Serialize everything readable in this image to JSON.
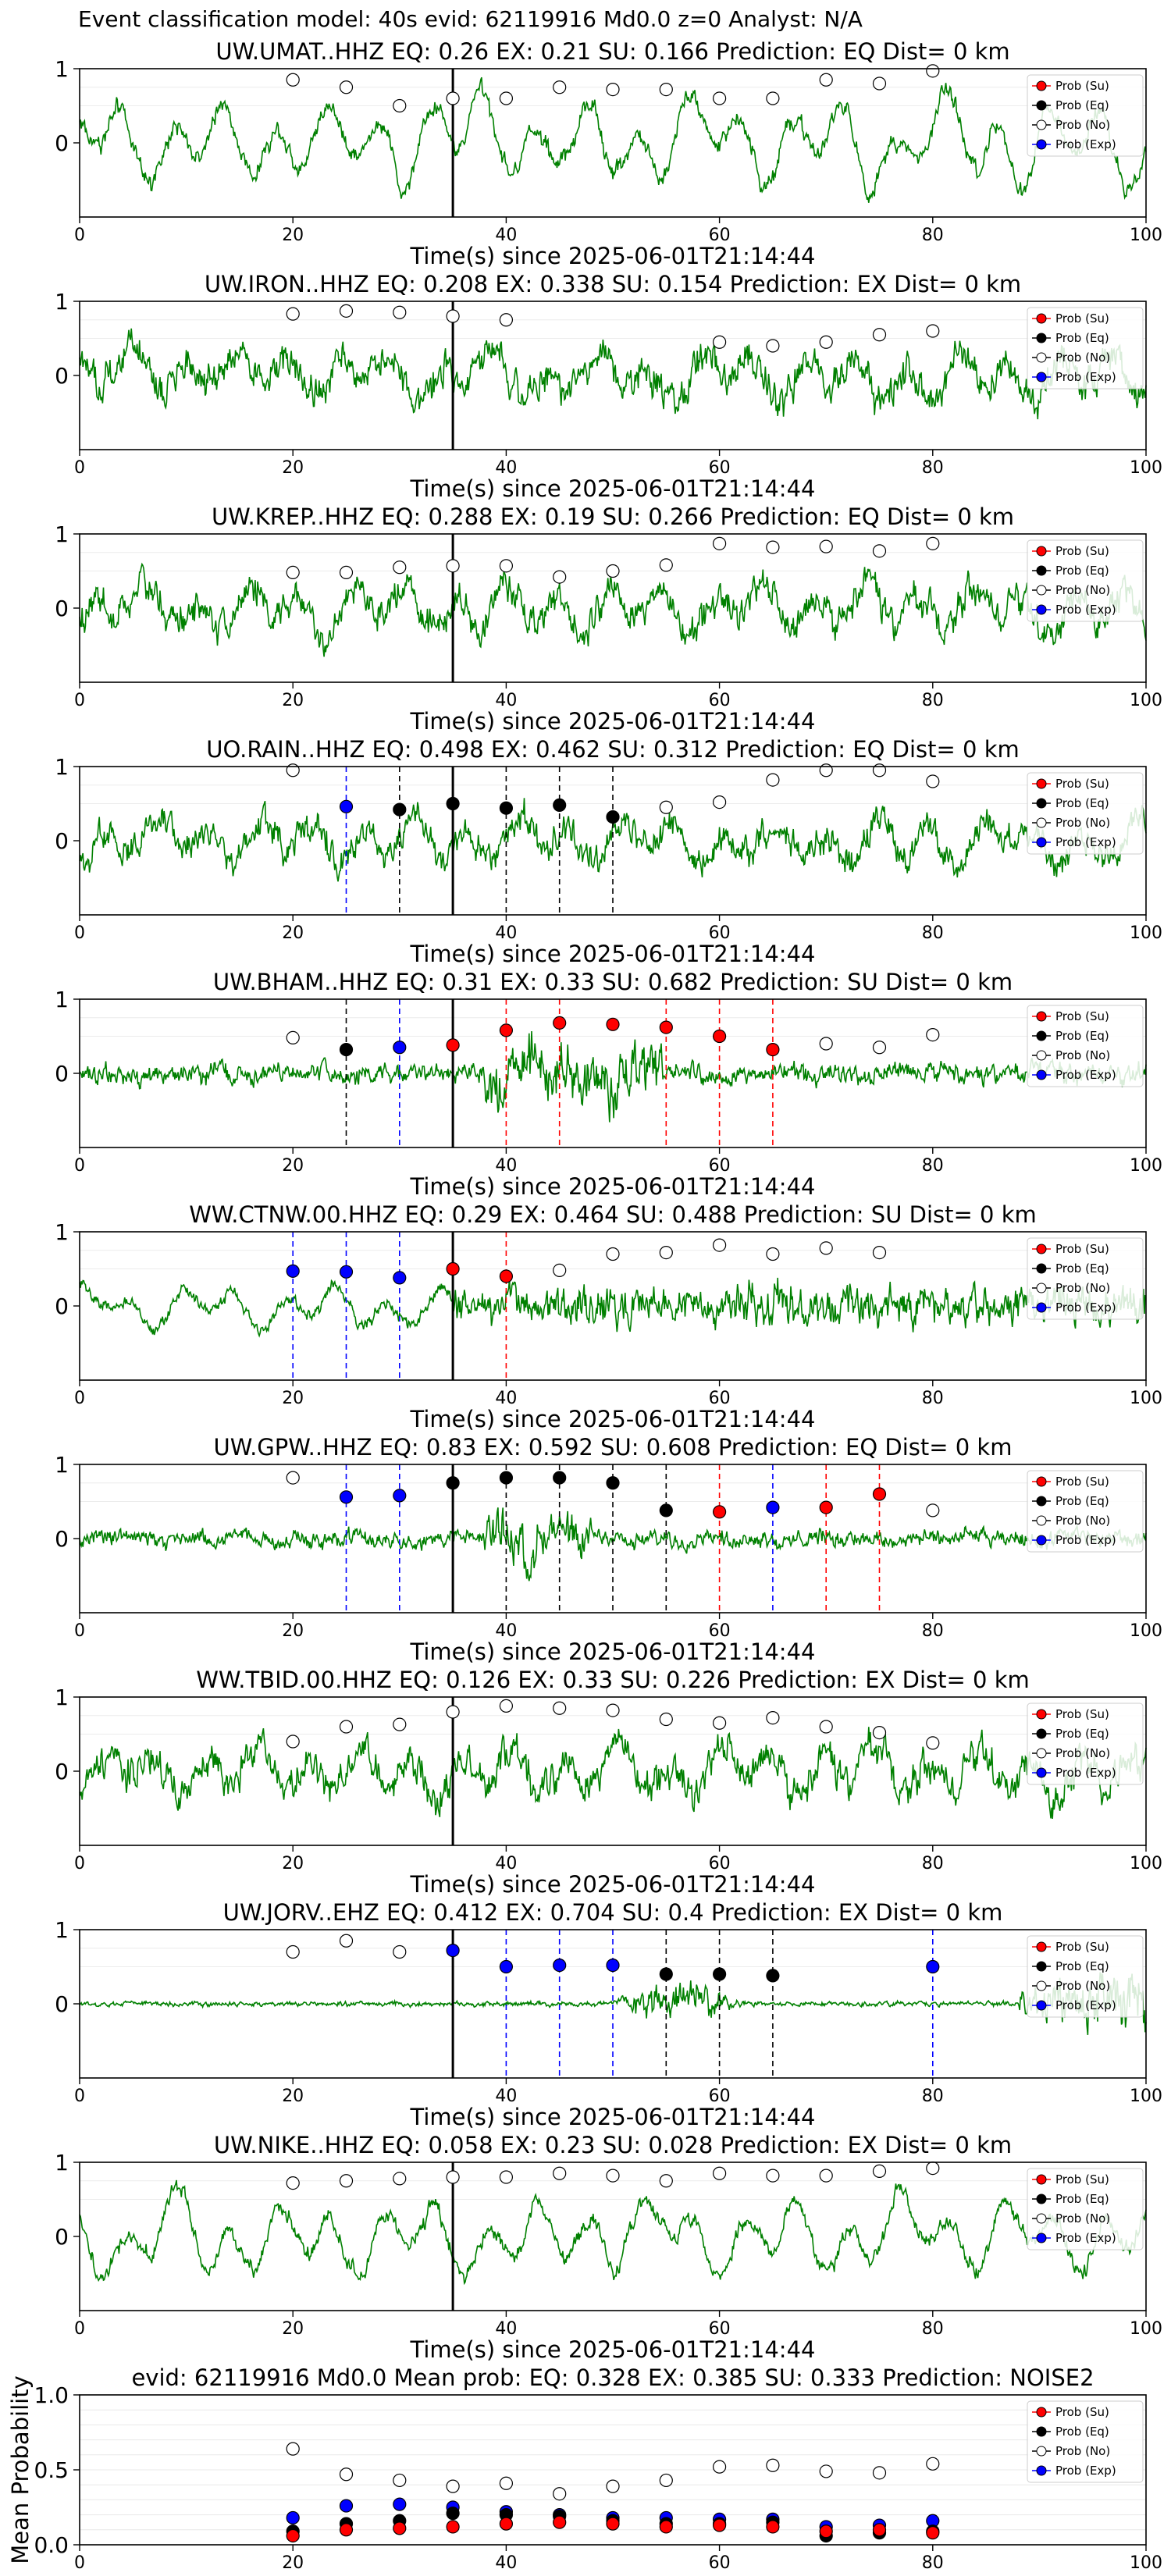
{
  "suptitle": "Event classification model: 40s evid: 62119916 Md0.0 z=0 Analyst: N/A",
  "colors": {
    "waveform": "#008000",
    "su": "#ff0000",
    "eq": "#000000",
    "no": "#ffffff",
    "exp": "#0000ff",
    "pick_line": "#000000"
  },
  "legend": {
    "su": "Prob (Su)",
    "eq": "Prob (Eq)",
    "no": "Prob (No)",
    "exp": "Prob (Exp)"
  },
  "xlabel": "Time(s) since 2025-06-01T21:14:44",
  "chart_data": [
    {
      "type": "line",
      "title": "UW.UMAT..HHZ   EQ: 0.26   EX: 0.21   SU: 0.166   Prediction: EQ    Dist= 0 km",
      "seed": 1,
      "style": "lowfreq",
      "amp": 0.9,
      "ylim": [
        -1,
        1
      ],
      "yticks": [
        "1",
        "0"
      ],
      "xlim": [
        0,
        100
      ],
      "xticks": [
        "0",
        "20",
        "40",
        "60",
        "80",
        "100"
      ],
      "pick_time": 35,
      "series": [
        {
          "class": "no",
          "x": [
            20,
            25,
            30,
            35,
            40,
            45,
            50,
            55,
            60,
            65,
            70,
            75,
            80
          ],
          "y": [
            0.85,
            0.75,
            0.5,
            0.6,
            0.6,
            0.75,
            0.72,
            0.72,
            0.6,
            0.6,
            0.85,
            0.8,
            0.97
          ]
        }
      ],
      "vlines": []
    },
    {
      "type": "line",
      "title": "UW.IRON..HHZ   EQ: 0.208   EX: 0.338   SU: 0.154   Prediction: EX    Dist= 0 km",
      "seed": 2,
      "style": "mixed",
      "amp": 0.85,
      "ylim": [
        -1,
        1
      ],
      "yticks": [
        "1",
        "0"
      ],
      "xlim": [
        0,
        100
      ],
      "xticks": [
        "0",
        "20",
        "40",
        "60",
        "80",
        "100"
      ],
      "pick_time": 35,
      "series": [
        {
          "class": "no",
          "x": [
            20,
            25,
            30,
            35,
            40,
            60,
            65,
            70,
            75,
            80
          ],
          "y": [
            0.83,
            0.87,
            0.85,
            0.8,
            0.75,
            0.45,
            0.4,
            0.45,
            0.55,
            0.6
          ]
        }
      ],
      "vlines": []
    },
    {
      "type": "line",
      "title": "UW.KREP..HHZ   EQ: 0.288   EX: 0.19   SU: 0.266   Prediction: EQ    Dist= 0 km",
      "seed": 3,
      "style": "mixed",
      "amp": 0.8,
      "ylim": [
        -1,
        1
      ],
      "yticks": [
        "1",
        "0"
      ],
      "xlim": [
        0,
        100
      ],
      "xticks": [
        "0",
        "20",
        "40",
        "60",
        "80",
        "100"
      ],
      "pick_time": 35,
      "series": [
        {
          "class": "no",
          "x": [
            20,
            25,
            30,
            35,
            40,
            45,
            50,
            55,
            60,
            65,
            70,
            75,
            80
          ],
          "y": [
            0.48,
            0.48,
            0.55,
            0.57,
            0.57,
            0.42,
            0.5,
            0.58,
            0.87,
            0.82,
            0.83,
            0.77,
            0.87
          ]
        }
      ],
      "vlines": []
    },
    {
      "type": "line",
      "title": "UO.RAIN..HHZ   EQ: 0.498   EX: 0.462   SU: 0.312   Prediction: EQ    Dist= 0 km",
      "seed": 4,
      "style": "mixed",
      "amp": 0.75,
      "ylim": [
        -1,
        1
      ],
      "yticks": [
        "1",
        "0"
      ],
      "xlim": [
        0,
        100
      ],
      "xticks": [
        "0",
        "20",
        "40",
        "60",
        "80",
        "100"
      ],
      "pick_time": 35,
      "series": [
        {
          "class": "no",
          "x": [
            20,
            55,
            60,
            65,
            70,
            75,
            80
          ],
          "y": [
            0.95,
            0.45,
            0.52,
            0.82,
            0.95,
            0.95,
            0.8
          ]
        },
        {
          "class": "exp",
          "x": [
            25
          ],
          "y": [
            0.46
          ]
        },
        {
          "class": "eq",
          "x": [
            30,
            35,
            40,
            45,
            50
          ],
          "y": [
            0.42,
            0.5,
            0.44,
            0.48,
            0.32
          ]
        }
      ],
      "vlines": [
        {
          "x": 25,
          "class": "exp"
        },
        {
          "x": 30,
          "class": "eq"
        },
        {
          "x": 40,
          "class": "eq"
        },
        {
          "x": 45,
          "class": "eq"
        },
        {
          "x": 50,
          "class": "eq"
        }
      ]
    },
    {
      "type": "line",
      "title": "UW.BHAM..HHZ   EQ: 0.31   EX: 0.33   SU: 0.682   Prediction: SU    Dist= 0 km",
      "seed": 5,
      "style": "burst",
      "burst": [
        38,
        55
      ],
      "amp": 0.9,
      "ylim": [
        -1,
        1
      ],
      "yticks": [
        "1",
        "0"
      ],
      "xlim": [
        0,
        100
      ],
      "xticks": [
        "0",
        "20",
        "40",
        "60",
        "80",
        "100"
      ],
      "pick_time": 35,
      "series": [
        {
          "class": "no",
          "x": [
            20,
            70,
            75,
            80
          ],
          "y": [
            0.48,
            0.4,
            0.35,
            0.52
          ]
        },
        {
          "class": "eq",
          "x": [
            25
          ],
          "y": [
            0.32
          ]
        },
        {
          "class": "exp",
          "x": [
            30
          ],
          "y": [
            0.35
          ]
        },
        {
          "class": "su",
          "x": [
            35,
            40,
            45,
            50,
            55,
            60,
            65
          ],
          "y": [
            0.38,
            0.58,
            0.68,
            0.66,
            0.62,
            0.5,
            0.32
          ]
        }
      ],
      "vlines": [
        {
          "x": 25,
          "class": "eq"
        },
        {
          "x": 30,
          "class": "exp"
        },
        {
          "x": 40,
          "class": "su"
        },
        {
          "x": 45,
          "class": "su"
        },
        {
          "x": 55,
          "class": "su"
        },
        {
          "x": 60,
          "class": "su"
        },
        {
          "x": 65,
          "class": "su"
        }
      ]
    },
    {
      "type": "line",
      "title": "WW.CTNW.00.HHZ   EQ: 0.29   EX: 0.464   SU: 0.488   Prediction: SU    Dist= 0 km",
      "seed": 6,
      "style": "stepup",
      "burst": [
        35,
        100
      ],
      "amp": 0.7,
      "ylim": [
        -1,
        1
      ],
      "yticks": [
        "1",
        "0"
      ],
      "xlim": [
        0,
        100
      ],
      "xticks": [
        "0",
        "20",
        "40",
        "60",
        "80",
        "100"
      ],
      "pick_time": 35,
      "series": [
        {
          "class": "exp",
          "x": [
            20,
            25,
            30
          ],
          "y": [
            0.47,
            0.46,
            0.38
          ]
        },
        {
          "class": "su",
          "x": [
            35,
            40
          ],
          "y": [
            0.5,
            0.4
          ]
        },
        {
          "class": "no",
          "x": [
            45,
            50,
            55,
            60,
            65,
            70,
            75
          ],
          "y": [
            0.48,
            0.7,
            0.72,
            0.82,
            0.7,
            0.78,
            0.72
          ]
        }
      ],
      "vlines": [
        {
          "x": 20,
          "class": "exp"
        },
        {
          "x": 25,
          "class": "exp"
        },
        {
          "x": 30,
          "class": "exp"
        },
        {
          "x": 40,
          "class": "su"
        }
      ]
    },
    {
      "type": "line",
      "title": "UW.GPW..HHZ   EQ: 0.83   EX: 0.592   SU: 0.608   Prediction: EQ    Dist= 0 km",
      "seed": 7,
      "style": "burst",
      "burst": [
        38,
        48
      ],
      "amp": 0.75,
      "ylim": [
        -1,
        1
      ],
      "yticks": [
        "1",
        "0"
      ],
      "xlim": [
        0,
        100
      ],
      "xticks": [
        "0",
        "20",
        "40",
        "60",
        "80",
        "100"
      ],
      "pick_time": 35,
      "series": [
        {
          "class": "no",
          "x": [
            20,
            80
          ],
          "y": [
            0.82,
            0.38
          ]
        },
        {
          "class": "exp",
          "x": [
            25,
            30,
            65
          ],
          "y": [
            0.56,
            0.58,
            0.42
          ]
        },
        {
          "class": "eq",
          "x": [
            35,
            40,
            45,
            50,
            55
          ],
          "y": [
            0.75,
            0.82,
            0.82,
            0.75,
            0.38
          ]
        },
        {
          "class": "su",
          "x": [
            60,
            70,
            75
          ],
          "y": [
            0.36,
            0.42,
            0.6
          ]
        }
      ],
      "vlines": [
        {
          "x": 25,
          "class": "exp"
        },
        {
          "x": 30,
          "class": "exp"
        },
        {
          "x": 40,
          "class": "eq"
        },
        {
          "x": 45,
          "class": "eq"
        },
        {
          "x": 50,
          "class": "eq"
        },
        {
          "x": 55,
          "class": "eq"
        },
        {
          "x": 60,
          "class": "su"
        },
        {
          "x": 65,
          "class": "exp"
        },
        {
          "x": 70,
          "class": "su"
        },
        {
          "x": 75,
          "class": "su"
        }
      ]
    },
    {
      "type": "line",
      "title": "WW.TBID.00.HHZ   EQ: 0.126   EX: 0.33   SU: 0.226   Prediction: EX    Dist= 0 km",
      "seed": 8,
      "style": "mixed",
      "amp": 0.85,
      "ylim": [
        -1,
        1
      ],
      "yticks": [
        "1",
        "0"
      ],
      "xlim": [
        0,
        100
      ],
      "xticks": [
        "0",
        "20",
        "40",
        "60",
        "80",
        "100"
      ],
      "pick_time": 35,
      "series": [
        {
          "class": "no",
          "x": [
            20,
            25,
            30,
            35,
            40,
            45,
            50,
            55,
            60,
            65,
            70,
            75,
            80
          ],
          "y": [
            0.4,
            0.6,
            0.63,
            0.8,
            0.88,
            0.85,
            0.82,
            0.7,
            0.65,
            0.72,
            0.6,
            0.52,
            0.38
          ]
        }
      ],
      "vlines": []
    },
    {
      "type": "line",
      "title": "UW.JORV..EHZ   EQ: 0.412   EX: 0.704   SU: 0.4   Prediction: EX    Dist= 0 km",
      "seed": 9,
      "style": "quiet",
      "burst": [
        50,
        62
      ],
      "amp": 0.7,
      "ylim": [
        -1,
        1
      ],
      "yticks": [
        "1",
        "0"
      ],
      "xlim": [
        0,
        100
      ],
      "xticks": [
        "0",
        "20",
        "40",
        "60",
        "80",
        "100"
      ],
      "pick_time": 35,
      "series": [
        {
          "class": "no",
          "x": [
            20,
            25,
            30
          ],
          "y": [
            0.7,
            0.85,
            0.7
          ]
        },
        {
          "class": "exp",
          "x": [
            35,
            40,
            45,
            50,
            80
          ],
          "y": [
            0.72,
            0.5,
            0.52,
            0.52,
            0.5
          ]
        },
        {
          "class": "eq",
          "x": [
            55,
            60,
            65
          ],
          "y": [
            0.4,
            0.4,
            0.38
          ]
        }
      ],
      "vlines": [
        {
          "x": 40,
          "class": "exp"
        },
        {
          "x": 45,
          "class": "exp"
        },
        {
          "x": 50,
          "class": "exp"
        },
        {
          "x": 55,
          "class": "eq"
        },
        {
          "x": 60,
          "class": "eq"
        },
        {
          "x": 65,
          "class": "eq"
        },
        {
          "x": 80,
          "class": "exp"
        }
      ]
    },
    {
      "type": "line",
      "title": "UW.NIKE..HHZ   EQ: 0.058   EX: 0.23   SU: 0.028   Prediction: EX    Dist= 0 km",
      "seed": 10,
      "style": "lowfreq",
      "amp": 0.8,
      "ylim": [
        -1,
        1
      ],
      "yticks": [
        "1",
        "0"
      ],
      "xlim": [
        0,
        100
      ],
      "xticks": [
        "0",
        "20",
        "40",
        "60",
        "80",
        "100"
      ],
      "pick_time": 35,
      "series": [
        {
          "class": "no",
          "x": [
            20,
            25,
            30,
            35,
            40,
            45,
            50,
            55,
            60,
            65,
            70,
            75,
            80
          ],
          "y": [
            0.72,
            0.75,
            0.78,
            0.8,
            0.8,
            0.85,
            0.82,
            0.75,
            0.85,
            0.82,
            0.82,
            0.88,
            0.92
          ]
        }
      ],
      "vlines": []
    },
    {
      "type": "scatter",
      "title": "evid: 62119916  Md0.0   Mean prob:   EQ: 0.328   EX: 0.385   SU: 0.333   Prediction: NOISE2",
      "ylabel": "Mean Probability",
      "ylim": [
        0,
        1
      ],
      "yticks": [
        "1.0",
        "0.5",
        "0.0"
      ],
      "ytickvals": [
        1,
        0.5,
        0
      ],
      "xlim": [
        0,
        100
      ],
      "xticks": [
        "0",
        "20",
        "40",
        "60",
        "80",
        "100"
      ],
      "series": [
        {
          "class": "no",
          "x": [
            20,
            25,
            30,
            35,
            40,
            45,
            50,
            55,
            60,
            65,
            70,
            75,
            80
          ],
          "y": [
            0.64,
            0.47,
            0.43,
            0.39,
            0.41,
            0.34,
            0.39,
            0.43,
            0.52,
            0.53,
            0.49,
            0.48,
            0.54
          ]
        },
        {
          "class": "exp",
          "x": [
            20,
            25,
            30,
            35,
            40,
            45,
            50,
            55,
            60,
            65,
            70,
            75,
            80
          ],
          "y": [
            0.18,
            0.26,
            0.27,
            0.25,
            0.22,
            0.2,
            0.18,
            0.18,
            0.17,
            0.17,
            0.12,
            0.13,
            0.16
          ]
        },
        {
          "class": "eq",
          "x": [
            20,
            25,
            30,
            35,
            40,
            45,
            50,
            55,
            60,
            65,
            70,
            75,
            80
          ],
          "y": [
            0.09,
            0.14,
            0.16,
            0.21,
            0.2,
            0.19,
            0.16,
            0.14,
            0.14,
            0.15,
            0.06,
            0.08,
            0.09
          ]
        },
        {
          "class": "su",
          "x": [
            20,
            25,
            30,
            35,
            40,
            45,
            50,
            55,
            60,
            65,
            70,
            75,
            80
          ],
          "y": [
            0.06,
            0.1,
            0.11,
            0.12,
            0.14,
            0.15,
            0.14,
            0.12,
            0.13,
            0.12,
            0.09,
            0.1,
            0.08
          ]
        }
      ]
    }
  ]
}
